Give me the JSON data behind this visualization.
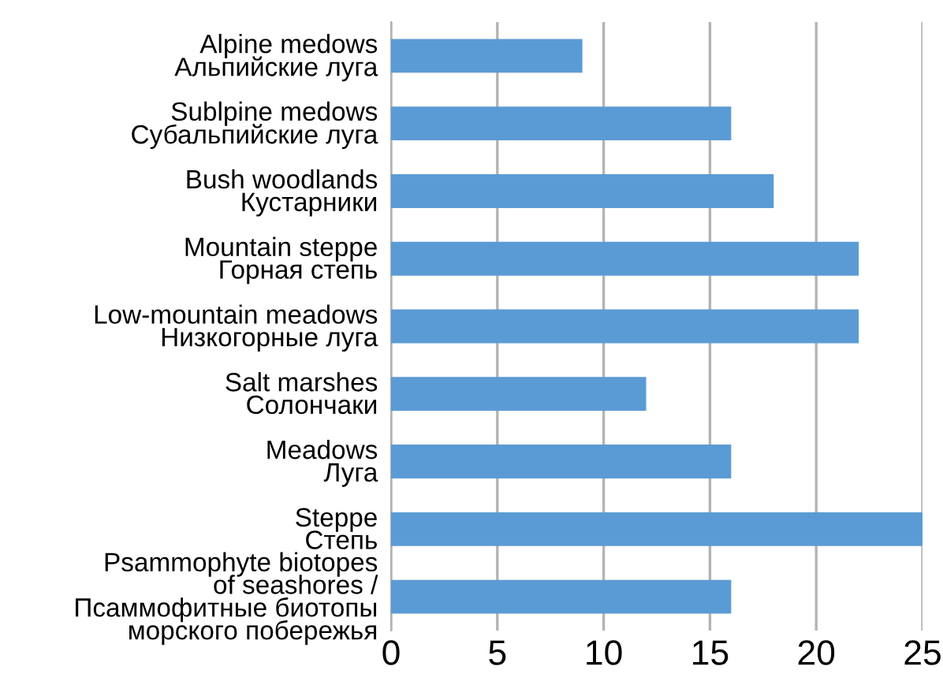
{
  "chart_data": {
    "type": "bar",
    "orientation": "horizontal",
    "categories": [
      "Alpine medows\nАльпийские луга",
      "Sublpine medows\nСубальпийские луга",
      "Bush woodlands\nКустарники",
      "Mountain steppe\nГорная степь",
      "Low-mountain meadows\nНизкогорные луга",
      "Salt marshes\nСолончаки",
      "Meadows\nЛуга",
      "Steppe\nСтепь",
      "Psammophyte biotopes\nof seashores /\nПсаммофитные биотопы\nморского побережья"
    ],
    "values": [
      9,
      16,
      18,
      22,
      22,
      12,
      16,
      25,
      16
    ],
    "color": "#5b9bd5",
    "xlim": [
      0,
      25
    ],
    "xticks": [
      0,
      5,
      10,
      15,
      20,
      25
    ],
    "grid": "x"
  }
}
